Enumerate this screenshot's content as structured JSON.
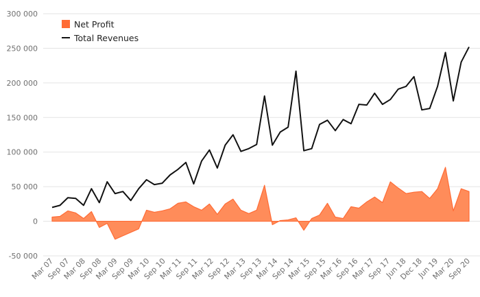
{
  "chart_data": {
    "type": "area",
    "title": "",
    "xlabel": "",
    "ylabel": "",
    "ylim": [
      -50000,
      300000
    ],
    "y_ticks": [
      -50000,
      0,
      50000,
      100000,
      150000,
      200000,
      250000,
      300000
    ],
    "y_tick_labels": [
      "-50 000",
      "0",
      "50 000",
      "100 000",
      "150 000",
      "200 000",
      "250 000",
      "300 000"
    ],
    "grid": "horizontal",
    "legend_position": "top-left",
    "x_tick_labels": [
      "Mar 07",
      "Sep 07",
      "Mar 08",
      "Sep 08",
      "Mar 09",
      "Sep 09",
      "Mar 10",
      "Sep 10",
      "Mar 11",
      "Sep 11",
      "Mar 12",
      "Sep 12",
      "Mar 13",
      "Sep 13",
      "Mar 14",
      "Sep 14",
      "Mar 15",
      "Sep 15",
      "Mar 16",
      "Sep 16",
      "Mar 17",
      "Sep 17",
      "Jun 18",
      "Dec 18",
      "Jun 19",
      "Mar 20",
      "Sep 20"
    ],
    "series": [
      {
        "name": "Net Profit",
        "kind": "area",
        "color": "#ff6b35",
        "fill_color": "#ff8c5a",
        "values": [
          6000,
          7000,
          15000,
          12000,
          4000,
          14000,
          -9000,
          -3000,
          -26000,
          -21000,
          -16000,
          -11000,
          16000,
          13000,
          15000,
          18000,
          26000,
          28000,
          21000,
          16000,
          25000,
          10000,
          25000,
          32000,
          16000,
          11000,
          16000,
          52000,
          -5000,
          1000,
          2000,
          5000,
          -13000,
          4000,
          9000,
          26000,
          6000,
          4000,
          21000,
          19000,
          28000,
          35000,
          27000,
          57000,
          48000,
          40000,
          42000,
          43000,
          33000,
          47000,
          78000,
          15000,
          47000,
          43000
        ]
      },
      {
        "name": "Total Revenues",
        "kind": "line",
        "color": "#111111",
        "values": [
          20000,
          23000,
          34000,
          33000,
          23000,
          47000,
          27000,
          57000,
          40000,
          43000,
          30000,
          47000,
          60000,
          53000,
          55000,
          67000,
          75000,
          85000,
          54000,
          87000,
          103000,
          77000,
          110000,
          125000,
          101000,
          105000,
          111000,
          181000,
          110000,
          129000,
          136000,
          217000,
          102000,
          105000,
          140000,
          146000,
          131000,
          147000,
          141000,
          169000,
          168000,
          185000,
          169000,
          176000,
          191000,
          195000,
          209000,
          161000,
          163000,
          195000,
          244000,
          174000,
          230000,
          252000
        ]
      }
    ]
  }
}
